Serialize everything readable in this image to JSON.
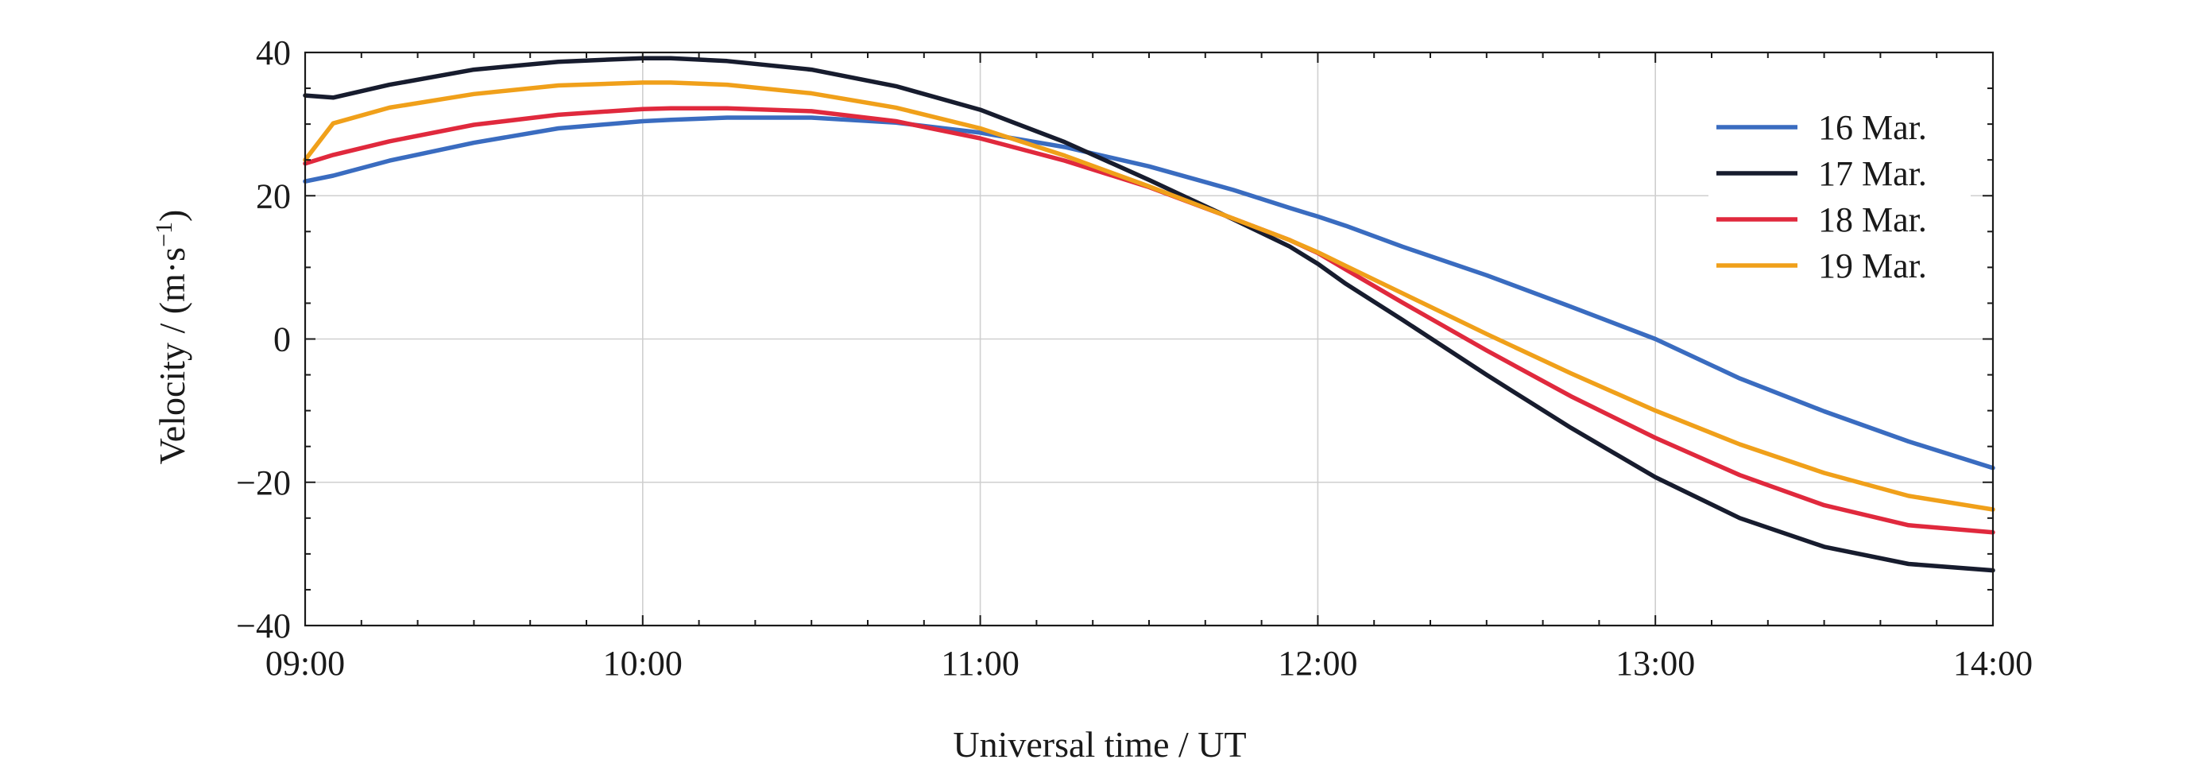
{
  "chart_data": {
    "type": "line",
    "title": "",
    "xlabel": "Universal time / UT",
    "ylabel": "Velocity / (m·s",
    "ylabel_superscript": "−1",
    "ylabel_close": ")",
    "xlim": [
      9.0,
      14.0
    ],
    "ylim": [
      -40,
      40
    ],
    "x_ticks": [
      9,
      10,
      11,
      12,
      13,
      14
    ],
    "x_tick_labels": [
      "09:00",
      "10:00",
      "11:00",
      "12:00",
      "13:00",
      "14:00"
    ],
    "y_ticks": [
      -40,
      -20,
      0,
      20,
      40
    ],
    "y_tick_labels": [
      "−40",
      "−20",
      "0",
      "20",
      "40"
    ],
    "grid": true,
    "legend_position": "top-right",
    "x": [
      9.0,
      9.083,
      9.25,
      9.5,
      9.75,
      10.0,
      10.083,
      10.25,
      10.5,
      10.75,
      11.0,
      11.25,
      11.5,
      11.75,
      11.917,
      12.0,
      12.083,
      12.25,
      12.5,
      12.75,
      13.0,
      13.25,
      13.5,
      13.75,
      14.0
    ],
    "series": [
      {
        "name": "16 Mar.",
        "color": "#3a6cc0",
        "values": [
          22.0,
          22.8,
          24.9,
          27.4,
          29.4,
          30.4,
          30.6,
          30.9,
          30.9,
          30.2,
          28.8,
          26.8,
          24.1,
          20.8,
          18.3,
          17.1,
          15.8,
          12.9,
          8.9,
          4.5,
          0.0,
          -5.5,
          -10.1,
          -14.3,
          -18.0
        ]
      },
      {
        "name": "17 Mar.",
        "color": "#171c2e",
        "values": [
          34.0,
          33.7,
          35.5,
          37.6,
          38.7,
          39.2,
          39.2,
          38.8,
          37.6,
          35.3,
          32.0,
          27.5,
          22.2,
          16.7,
          12.9,
          10.5,
          7.7,
          2.7,
          -5.0,
          -12.4,
          -19.3,
          -25.0,
          -29.0,
          -31.4,
          -32.3
        ]
      },
      {
        "name": "18 Mar.",
        "color": "#e0293d",
        "values": [
          24.5,
          25.7,
          27.6,
          29.9,
          31.3,
          32.1,
          32.2,
          32.2,
          31.8,
          30.4,
          28.0,
          24.9,
          21.2,
          16.8,
          13.8,
          12.0,
          9.7,
          5.1,
          -1.6,
          -8.0,
          -13.8,
          -19.0,
          -23.2,
          -26.0,
          -27.0
        ]
      },
      {
        "name": "19 Mar.",
        "color": "#f0a01a",
        "values": [
          25.0,
          30.1,
          32.3,
          34.2,
          35.4,
          35.8,
          35.8,
          35.5,
          34.3,
          32.3,
          29.4,
          25.6,
          21.3,
          16.8,
          13.8,
          12.1,
          10.2,
          6.4,
          0.7,
          -4.8,
          -10.0,
          -14.7,
          -18.7,
          -21.9,
          -23.8
        ]
      }
    ]
  }
}
